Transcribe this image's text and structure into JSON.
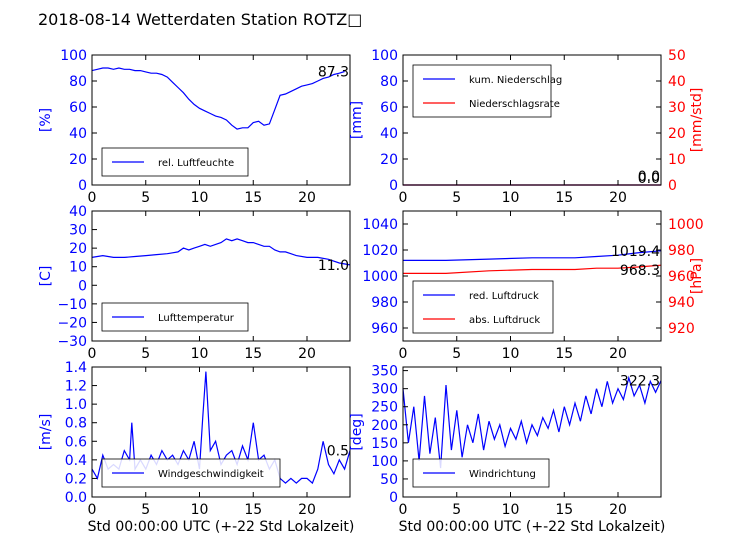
{
  "figure": {
    "title": "2018-08-14 Wetterdaten Station ROTZ□",
    "colors": {
      "primary": "#0000ff",
      "secondary": "#ff0000",
      "axis": "#000000",
      "background": "#ffffff"
    }
  },
  "chart_data": [
    {
      "id": "humidity",
      "type": "line",
      "xlim": [
        0,
        24
      ],
      "ylim": [
        0,
        100
      ],
      "xticks": [
        "0",
        "5",
        "10",
        "15",
        "20"
      ],
      "yticks": [
        "0",
        "20",
        "40",
        "60",
        "80",
        "100"
      ],
      "ylabel": "[%]",
      "last_value": "87.3",
      "legend_pos": "lower-left",
      "series": [
        {
          "name": "rel. Luftfeuchte",
          "color": "#0000ff",
          "x": [
            0,
            0.5,
            1,
            1.5,
            2,
            2.5,
            3,
            3.5,
            4,
            4.5,
            5,
            5.5,
            6,
            6.5,
            7,
            7.5,
            8,
            8.5,
            9,
            9.5,
            10,
            10.5,
            11,
            11.5,
            12,
            12.5,
            13,
            13.5,
            14,
            14.5,
            15,
            15.5,
            16,
            16.5,
            17,
            17.5,
            18,
            18.5,
            19,
            19.5,
            20,
            20.5,
            21,
            21.5,
            22,
            22.5,
            23,
            23.5
          ],
          "y": [
            88,
            89,
            90,
            90,
            89,
            90,
            89,
            89,
            88,
            88,
            87,
            86,
            86,
            85,
            83,
            79,
            75,
            71,
            66,
            62,
            59,
            57,
            55,
            53,
            52,
            50,
            46,
            43,
            44,
            44,
            48,
            49,
            46,
            47,
            58,
            69,
            70,
            72,
            74,
            76,
            77,
            78,
            80,
            82,
            83,
            85,
            86,
            87.3
          ]
        }
      ]
    },
    {
      "id": "precip",
      "type": "line",
      "xlim": [
        0,
        24
      ],
      "ylim": [
        0,
        100
      ],
      "y2lim": [
        0,
        50
      ],
      "xticks": [
        "0",
        "5",
        "10",
        "15",
        "20"
      ],
      "yticks": [
        "0",
        "20",
        "40",
        "60",
        "80",
        "100"
      ],
      "y2ticks": [
        "0",
        "10",
        "20",
        "30",
        "40",
        "50"
      ],
      "ylabel": "[mm]",
      "y2label": "[mm/std]",
      "last_value": "0.0",
      "last_value2": "0.0",
      "legend_pos": "upper-left",
      "series": [
        {
          "name": "kum. Niederschlag",
          "color": "#0000ff",
          "axis": "left",
          "x": [
            0,
            24
          ],
          "y": [
            0,
            0
          ]
        },
        {
          "name": "Niederschlagsrate",
          "color": "#ff0000",
          "axis": "right",
          "x": [
            0,
            24
          ],
          "y": [
            0,
            0
          ]
        }
      ]
    },
    {
      "id": "temperature",
      "type": "line",
      "xlim": [
        0,
        24
      ],
      "ylim": [
        -30,
        40
      ],
      "xticks": [
        "0",
        "5",
        "10",
        "15",
        "20"
      ],
      "yticks": [
        "−30",
        "−20",
        "−10",
        "0",
        "10",
        "20",
        "30",
        "40"
      ],
      "ylabel": "[C]",
      "last_value": "11.0",
      "legend_pos": "lower-left",
      "series": [
        {
          "name": "Lufttemperatur",
          "color": "#0000ff",
          "x": [
            0,
            1,
            2,
            3,
            4,
            5,
            6,
            7,
            7.5,
            8,
            8.5,
            9,
            9.5,
            10,
            10.5,
            11,
            11.5,
            12,
            12.5,
            13,
            13.5,
            14,
            14.5,
            15,
            15.5,
            16,
            16.5,
            17,
            17.5,
            18,
            18.5,
            19,
            20,
            21,
            22,
            23,
            24
          ],
          "y": [
            15,
            16,
            15,
            15,
            15.5,
            16,
            16.5,
            17,
            17.5,
            18,
            20,
            19,
            20,
            21,
            22,
            21,
            22,
            23,
            25,
            24,
            25,
            24,
            23,
            23,
            22,
            21,
            21,
            19,
            18,
            18,
            17,
            16,
            15,
            15,
            14,
            12,
            11
          ]
        }
      ]
    },
    {
      "id": "pressure",
      "type": "line",
      "xlim": [
        0,
        24
      ],
      "ylim": [
        950,
        1050
      ],
      "y2lim": [
        910,
        1010
      ],
      "xticks": [
        "0",
        "5",
        "10",
        "15",
        "20"
      ],
      "yticks": [
        "960",
        "980",
        "1000",
        "1020",
        "1040"
      ],
      "y2ticks": [
        "920",
        "940",
        "960",
        "980",
        "1000"
      ],
      "ylabel": "",
      "y2label": "[hPa]",
      "last_value": "1019.4",
      "last_value2": "968.3",
      "legend_pos": "lower-left",
      "series": [
        {
          "name": "red. Luftdruck",
          "color": "#0000ff",
          "axis": "left",
          "x": [
            0,
            4,
            8,
            12,
            16,
            18,
            20,
            22,
            24
          ],
          "y": [
            1012,
            1012,
            1013,
            1014,
            1014,
            1015,
            1016,
            1018,
            1019.4
          ]
        },
        {
          "name": "abs. Luftdruck",
          "color": "#ff0000",
          "axis": "right",
          "x": [
            0,
            4,
            8,
            12,
            16,
            18,
            20,
            22,
            24
          ],
          "y": [
            962,
            962,
            964,
            965,
            965,
            966,
            966,
            967,
            968.3
          ]
        }
      ]
    },
    {
      "id": "wind_speed",
      "type": "line",
      "xlim": [
        0,
        24
      ],
      "ylim": [
        0,
        1.4
      ],
      "xticks": [
        "0",
        "5",
        "10",
        "15",
        "20"
      ],
      "yticks": [
        "0.0",
        "0.2",
        "0.4",
        "0.6",
        "0.8",
        "1.0",
        "1.2",
        "1.4"
      ],
      "xlabel": "Std 00:00:00 UTC (+-22 Std Lokalzeit)",
      "ylabel": "[m/s]",
      "last_value": "0.5",
      "legend_pos": "lower-left",
      "series": [
        {
          "name": "Windgeschwindigkeit",
          "color": "#0000ff",
          "x": [
            0,
            0.5,
            1,
            1.5,
            2,
            2.5,
            3,
            3.5,
            3.7,
            4,
            4.5,
            5,
            5.5,
            6,
            6.5,
            7,
            7.5,
            8,
            8.5,
            9,
            9.5,
            10,
            10.3,
            10.6,
            11,
            11.5,
            12,
            12.5,
            13,
            13.5,
            14,
            14.5,
            15,
            15.5,
            16,
            16.5,
            17,
            17.5,
            18,
            18.5,
            19,
            19.5,
            20,
            20.5,
            21,
            21.5,
            22,
            22.5,
            23,
            23.5,
            24
          ],
          "y": [
            0.3,
            0.2,
            0.45,
            0.3,
            0.35,
            0.3,
            0.5,
            0.4,
            0.8,
            0.3,
            0.4,
            0.3,
            0.45,
            0.35,
            0.5,
            0.4,
            0.45,
            0.35,
            0.5,
            0.4,
            0.6,
            0.3,
            0.85,
            1.35,
            0.5,
            0.6,
            0.35,
            0.45,
            0.5,
            0.35,
            0.55,
            0.4,
            0.8,
            0.4,
            0.45,
            0.3,
            0.4,
            0.2,
            0.15,
            0.2,
            0.15,
            0.2,
            0.2,
            0.15,
            0.3,
            0.6,
            0.35,
            0.25,
            0.4,
            0.3,
            0.5
          ]
        }
      ]
    },
    {
      "id": "wind_direction",
      "type": "line",
      "xlim": [
        0,
        24
      ],
      "ylim": [
        0,
        360
      ],
      "xticks": [
        "0",
        "5",
        "10",
        "15",
        "20"
      ],
      "yticks": [
        "0",
        "50",
        "100",
        "150",
        "200",
        "250",
        "300",
        "350"
      ],
      "xlabel": "Std 00:00:00 UTC (+-22 Std Lokalzeit)",
      "ylabel": "[deg]",
      "last_value": "322.3",
      "legend_pos": "lower-left",
      "series": [
        {
          "name": "Windrichtung",
          "color": "#0000ff",
          "x": [
            0,
            0.5,
            1,
            1.5,
            2,
            2.5,
            3,
            3.5,
            4,
            4.5,
            5,
            5.5,
            6,
            6.5,
            7,
            7.5,
            8,
            8.5,
            9,
            9.5,
            10,
            10.5,
            11,
            11.5,
            12,
            12.5,
            13,
            13.5,
            14,
            14.5,
            15,
            15.5,
            16,
            16.5,
            17,
            17.5,
            18,
            18.5,
            19,
            19.5,
            20,
            20.5,
            21,
            21.5,
            22,
            22.5,
            23,
            23.5,
            24
          ],
          "y": [
            300,
            150,
            250,
            100,
            280,
            120,
            220,
            80,
            310,
            130,
            240,
            110,
            200,
            150,
            230,
            130,
            210,
            160,
            200,
            140,
            190,
            160,
            210,
            150,
            200,
            170,
            220,
            190,
            240,
            180,
            250,
            200,
            260,
            210,
            280,
            230,
            300,
            250,
            320,
            260,
            300,
            270,
            330,
            280,
            310,
            260,
            320,
            290,
            322.3
          ]
        }
      ]
    }
  ]
}
